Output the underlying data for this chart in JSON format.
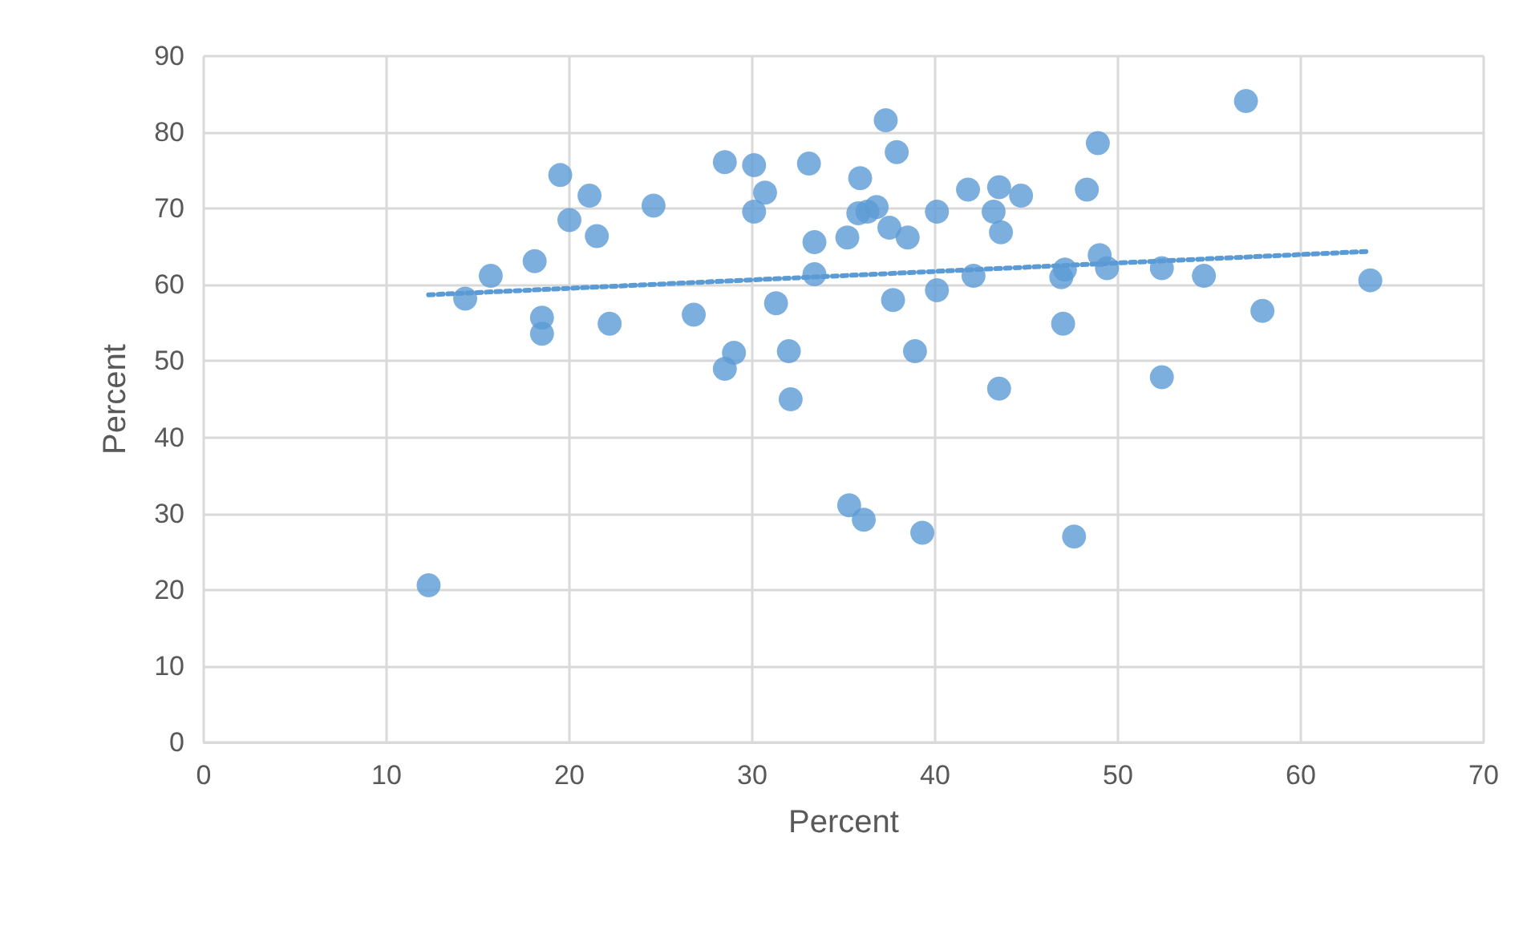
{
  "chart_data": {
    "type": "scatter",
    "xlabel": "Percent",
    "ylabel": "Percent",
    "xlim": [
      0,
      70
    ],
    "xticks": [
      0,
      10,
      20,
      30,
      40,
      50,
      60,
      70
    ],
    "ylim": [
      0,
      90
    ],
    "yticks": [
      0,
      10,
      20,
      30,
      40,
      50,
      60,
      70,
      80,
      90
    ],
    "grid": true,
    "marker": "circle",
    "series": [
      {
        "color": "#5b9bd5",
        "x": [
          12.3,
          14.3,
          15.7,
          18.1,
          18.5,
          18.5,
          19.5,
          20.0,
          21.1,
          21.5,
          22.2,
          24.6,
          26.8,
          28.5,
          28.5,
          29.0,
          30.1,
          30.1,
          30.7,
          31.3,
          32.0,
          32.1,
          33.1,
          33.4,
          33.4,
          35.2,
          35.3,
          35.8,
          35.9,
          36.1,
          36.3,
          36.8,
          37.3,
          37.5,
          37.9,
          37.7,
          38.5,
          38.9,
          39.3,
          40.1,
          40.1,
          41.8,
          42.1,
          43.2,
          43.5,
          43.6,
          43.5,
          44.7,
          46.9,
          47.1,
          47.0,
          47.6,
          48.3,
          48.9,
          49.0,
          49.4,
          52.4,
          52.4,
          54.7,
          57.0,
          57.9,
          63.8
        ],
        "values": [
          20.6,
          58.2,
          61.2,
          63.1,
          55.7,
          53.6,
          74.4,
          68.5,
          71.7,
          66.4,
          54.9,
          70.4,
          56.1,
          76.1,
          49.0,
          51.1,
          75.7,
          69.6,
          72.1,
          57.6,
          51.3,
          45.0,
          75.9,
          65.6,
          61.4,
          66.2,
          31.1,
          69.4,
          74.0,
          29.2,
          69.6,
          70.2,
          81.6,
          67.5,
          77.4,
          58.0,
          66.2,
          51.3,
          27.5,
          69.6,
          59.3,
          72.5,
          61.2,
          69.6,
          72.8,
          66.9,
          46.4,
          71.7,
          61.0,
          62.0,
          54.9,
          27.0,
          72.5,
          78.6,
          63.9,
          62.2,
          62.2,
          47.9,
          61.2,
          84.1,
          56.6,
          60.6
        ]
      },
      {
        "type": "line",
        "color": "#5b9bd5",
        "line_style": "dotted",
        "marker": "none",
        "x": [
          12.3,
          63.8
        ],
        "values": [
          58.7,
          64.4
        ]
      }
    ]
  }
}
